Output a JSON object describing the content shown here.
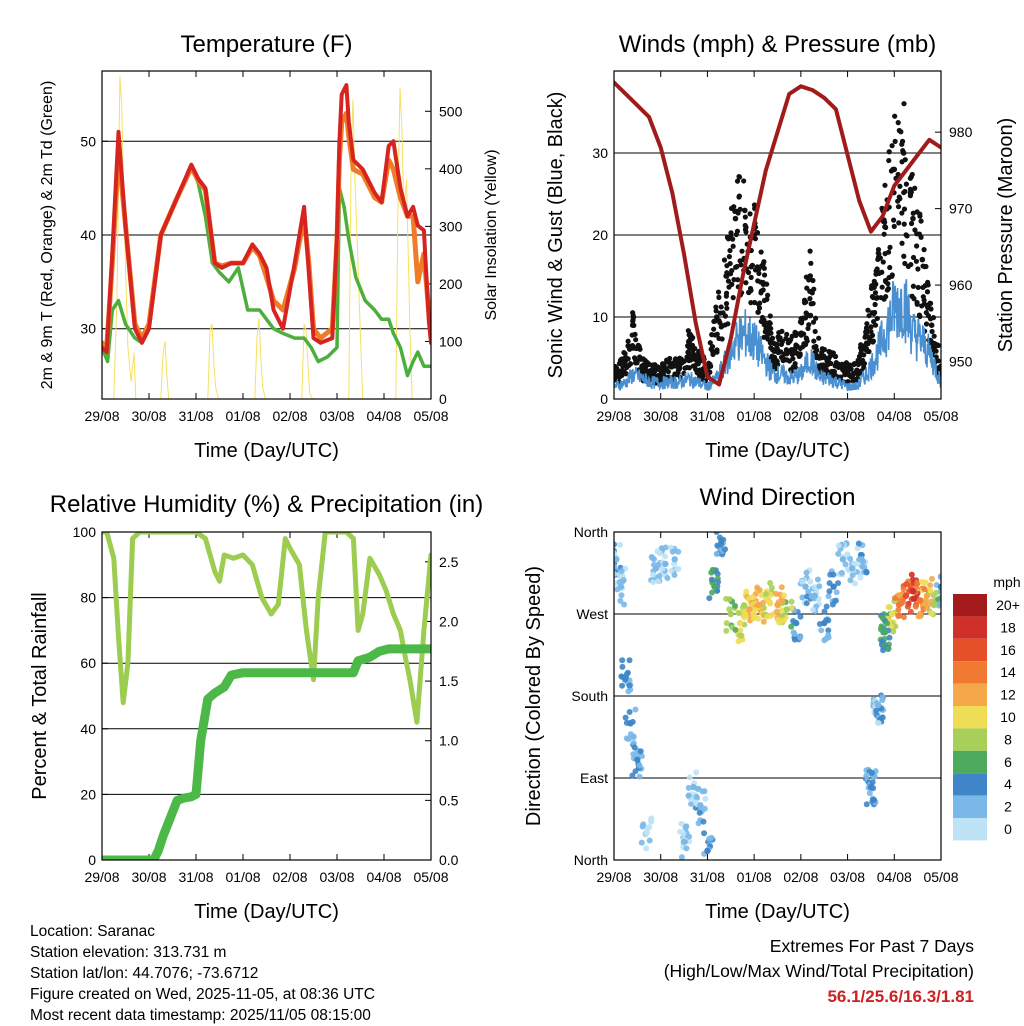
{
  "info": {
    "location": "Location: Saranac",
    "elevation": "Station elevation: 313.731 m",
    "latlon": "Station lat/lon: 44.7076; -73.6712",
    "created": "Figure created on Wed, 2025-11-05, at 08:36 UTC",
    "recent": "Most recent data timestamp: 2025/11/05 08:15:00"
  },
  "extremes": {
    "line1": "Extremes For Past 7 Days",
    "line2": "(High/Low/Max Wind/Total Precipitation)",
    "values": "56.1/25.6/16.3/1.81"
  },
  "colors": {
    "t2m": "#d62520",
    "t9m": "#f07c28",
    "dew": "#4caf3c",
    "solar": "#f7e060",
    "gust": "#111111",
    "wind": "#4a90d0",
    "pressure": "#a01c1c",
    "rh": "#9ccc50",
    "precip": "#4cb848"
  },
  "chart_data": [
    {
      "type": "line",
      "title": "Temperature (F)",
      "xlabel": "Time (Day/UTC)",
      "ylabel": "2m & 9m T (Red, Orange) & 2m Td (Green)",
      "ylabel_right": "Solar Insolation (Yellow)",
      "x_ticks": [
        "29/08",
        "30/08",
        "31/08",
        "01/08",
        "02/08",
        "03/08",
        "04/08",
        "05/08"
      ],
      "xlim": [
        0,
        7
      ],
      "ylim": [
        22.5,
        57.5
      ],
      "y_ticks": [
        30,
        40,
        50
      ],
      "y2lim": [
        0,
        570
      ],
      "y2_ticks": [
        0,
        100,
        200,
        300,
        400,
        500
      ],
      "grid": true,
      "series": [
        {
          "name": "2m T",
          "color": "#d62520",
          "x": [
            0,
            0.1,
            0.22,
            0.35,
            0.5,
            0.7,
            0.85,
            1.0,
            1.25,
            1.6,
            1.9,
            2.05,
            2.2,
            2.4,
            2.55,
            2.75,
            3.0,
            3.2,
            3.35,
            3.5,
            3.65,
            3.85,
            4.1,
            4.3,
            4.4,
            4.5,
            4.65,
            4.9,
            5.0,
            5.05,
            5.1,
            5.2,
            5.25,
            5.35,
            5.55,
            5.8,
            5.95,
            6.1,
            6.2,
            6.35,
            6.5,
            6.62,
            6.72,
            6.85,
            6.95,
            7.0
          ],
          "y": [
            28,
            27.5,
            38,
            51,
            41,
            30,
            28.5,
            30,
            40,
            44,
            47.5,
            46,
            45,
            37,
            36.5,
            37,
            37,
            39,
            38,
            36.5,
            32,
            30,
            37,
            43,
            36,
            29,
            28.5,
            29,
            40,
            50,
            55,
            56,
            52,
            48,
            47,
            44.5,
            43.5,
            49.5,
            50,
            45,
            42,
            43,
            41,
            40.5,
            31,
            28.5
          ]
        },
        {
          "name": "9m T",
          "color": "#f07c28",
          "x": [
            0,
            0.1,
            0.22,
            0.35,
            0.5,
            0.7,
            0.85,
            1.0,
            1.25,
            1.6,
            1.9,
            2.05,
            2.2,
            2.4,
            2.55,
            2.75,
            3.0,
            3.2,
            3.35,
            3.5,
            3.65,
            3.85,
            4.1,
            4.3,
            4.4,
            4.5,
            4.65,
            4.9,
            5.0,
            5.05,
            5.1,
            5.2,
            5.25,
            5.35,
            5.55,
            5.8,
            5.95,
            6.1,
            6.2,
            6.35,
            6.5,
            6.62,
            6.72,
            6.85,
            6.95,
            7.0
          ],
          "y": [
            28.5,
            28,
            37,
            49,
            41,
            30.5,
            29,
            30.5,
            40,
            44,
            47.2,
            45.8,
            44.8,
            37,
            36.7,
            37,
            37,
            38.7,
            37.8,
            35.5,
            33,
            32,
            36.5,
            42,
            37,
            30,
            29,
            30,
            39.5,
            48,
            52,
            53,
            50.5,
            47,
            46.5,
            44,
            43.5,
            48,
            47,
            44,
            42,
            42,
            35,
            38,
            32,
            29
          ]
        },
        {
          "name": "2m Td",
          "color": "#4caf3c",
          "x": [
            0,
            0.12,
            0.22,
            0.35,
            0.5,
            0.7,
            0.85,
            1.0,
            1.25,
            1.6,
            1.9,
            2.05,
            2.2,
            2.35,
            2.5,
            2.7,
            2.9,
            3.1,
            3.35,
            3.5,
            3.65,
            3.85,
            4.1,
            4.3,
            4.45,
            4.6,
            4.8,
            5.0,
            5.05,
            5.15,
            5.25,
            5.4,
            5.6,
            5.8,
            5.95,
            6.1,
            6.2,
            6.35,
            6.5,
            6.62,
            6.72,
            6.85,
            7.0
          ],
          "y": [
            28,
            26.5,
            32,
            33,
            30.5,
            29,
            28.5,
            30,
            40,
            44,
            47.5,
            45.5,
            42,
            37,
            36,
            35,
            36.5,
            32,
            32,
            31,
            30,
            29.5,
            29,
            29,
            28,
            26.5,
            27,
            28,
            45,
            43,
            39.5,
            35.5,
            33,
            32,
            31,
            31,
            29.5,
            28,
            25,
            26.5,
            27.5,
            26,
            26
          ]
        },
        {
          "name": "Solar Insolation",
          "color": "#f7e060",
          "axis": "right",
          "x": [
            0.25,
            0.32,
            0.38,
            0.42,
            0.46,
            0.5,
            0.55,
            0.62,
            0.68,
            0.72,
            0.85,
            1.25,
            1.3,
            1.34,
            1.38,
            1.42,
            2.25,
            2.3,
            2.34,
            2.38,
            2.42,
            2.48,
            3.25,
            3.3,
            3.34,
            3.38,
            3.42,
            3.48,
            4.25,
            4.3,
            4.34,
            4.38,
            4.42,
            4.48,
            5.25,
            5.3,
            5.34,
            5.38,
            5.42,
            5.48,
            5.55,
            6.25,
            6.3,
            6.34,
            6.38,
            6.42,
            6.48,
            6.55,
            6.6
          ],
          "y": [
            0,
            180,
            560,
            510,
            370,
            230,
            90,
            30,
            80,
            0,
            0,
            0,
            80,
            100,
            40,
            0,
            0,
            120,
            130,
            60,
            20,
            0,
            0,
            110,
            140,
            70,
            20,
            0,
            0,
            130,
            120,
            60,
            10,
            0,
            0,
            420,
            520,
            380,
            300,
            150,
            0,
            0,
            360,
            540,
            470,
            330,
            380,
            120,
            0
          ]
        }
      ]
    },
    {
      "type": "scatter",
      "title": "Winds (mph) & Pressure (mb)",
      "xlabel": "Time (Day/UTC)",
      "ylabel": "Sonic Wind & Gust (Blue, Black)",
      "ylabel_right": "Station Pressure (Maroon)",
      "x_ticks": [
        "29/08",
        "30/08",
        "31/08",
        "01/08",
        "02/08",
        "03/08",
        "04/08",
        "05/08"
      ],
      "xlim": [
        0,
        7
      ],
      "ylim": [
        0,
        40
      ],
      "y_ticks": [
        0,
        10,
        20,
        30
      ],
      "y2lim": [
        945.1,
        988
      ],
      "y2_ticks": [
        950,
        960,
        970,
        980
      ],
      "grid": true,
      "series": [
        {
          "name": "Gust",
          "color": "#111111",
          "marker": "dot",
          "x": [
            0.0,
            0.25,
            0.4,
            0.6,
            0.8,
            1.0,
            1.2,
            1.4,
            1.6,
            1.8,
            2.0,
            2.2,
            2.4,
            2.6,
            2.8,
            3.0,
            3.2,
            3.4,
            3.6,
            3.8,
            4.0,
            4.2,
            4.4,
            4.6,
            4.8,
            5.0,
            5.2,
            5.4,
            5.6,
            5.8,
            6.0,
            6.2,
            6.4,
            6.6,
            6.8,
            7.0
          ],
          "y": [
            3,
            5,
            9,
            4,
            3.5,
            3.5,
            4,
            4,
            7,
            5,
            3.5,
            10,
            15,
            22,
            23,
            20,
            14,
            6,
            7,
            6,
            8,
            15,
            5,
            5,
            4,
            3.5,
            3.5,
            8,
            14,
            21,
            28,
            30,
            22,
            17,
            9,
            4
          ]
        },
        {
          "name": "Wind",
          "color": "#4a90d0",
          "type": "line",
          "x": [
            0.0,
            0.25,
            0.4,
            0.6,
            0.8,
            1.0,
            1.2,
            1.4,
            1.6,
            1.8,
            2.0,
            2.2,
            2.4,
            2.6,
            2.8,
            3.0,
            3.2,
            3.4,
            3.6,
            3.8,
            4.0,
            4.2,
            4.4,
            4.6,
            4.8,
            5.0,
            5.2,
            5.4,
            5.6,
            5.8,
            6.0,
            6.2,
            6.4,
            6.6,
            6.8,
            7.0
          ],
          "y": [
            1.5,
            2,
            3,
            2.5,
            2,
            2,
            2,
            2,
            2.5,
            2,
            1.5,
            2.5,
            4.5,
            7,
            8,
            7,
            5,
            3,
            3,
            2.5,
            3,
            5,
            2.5,
            2.5,
            2,
            1.5,
            1.5,
            3,
            5,
            8,
            11,
            12,
            8,
            7,
            5,
            2
          ]
        },
        {
          "name": "Station Pressure",
          "color": "#a01c1c",
          "type": "line",
          "axis": "right",
          "x": [
            0.0,
            0.25,
            0.5,
            0.75,
            1.0,
            1.25,
            1.5,
            1.75,
            2.0,
            2.25,
            2.5,
            2.75,
            3.0,
            3.25,
            3.5,
            3.75,
            4.0,
            4.25,
            4.5,
            4.75,
            5.0,
            5.25,
            5.5,
            5.75,
            6.0,
            6.25,
            6.5,
            6.75,
            7.0
          ],
          "y": [
            986.5,
            985,
            983.5,
            982,
            978,
            972,
            964,
            955,
            948,
            947,
            953,
            961,
            968,
            975,
            980,
            985,
            986,
            985.5,
            984.5,
            983,
            977,
            971,
            967,
            969,
            973,
            975,
            977,
            979,
            978
          ]
        }
      ]
    },
    {
      "type": "line",
      "title": "Relative Humidity (%) & Precipitation (in)",
      "xlabel": "Time (Day/UTC)",
      "ylabel": "Percent & Total Rainfall",
      "x_ticks": [
        "29/08",
        "30/08",
        "31/08",
        "01/08",
        "02/08",
        "03/08",
        "04/08",
        "05/08"
      ],
      "xlim": [
        0,
        7
      ],
      "ylim": [
        0,
        100
      ],
      "y_ticks": [
        0,
        20,
        40,
        60,
        80,
        100
      ],
      "y2lim": [
        0,
        2.75
      ],
      "y2_ticks": [
        0.0,
        0.5,
        1.0,
        1.5,
        2.0,
        2.5
      ],
      "grid": true,
      "series": [
        {
          "name": "Relative Humidity",
          "color": "#9ccc50",
          "x": [
            0.0,
            0.1,
            0.25,
            0.35,
            0.45,
            0.55,
            0.65,
            0.8,
            1.2,
            1.6,
            2.0,
            2.2,
            2.4,
            2.5,
            2.6,
            2.8,
            3.0,
            3.2,
            3.4,
            3.6,
            3.75,
            3.9,
            4.0,
            4.2,
            4.35,
            4.5,
            4.6,
            4.75,
            5.0,
            5.2,
            5.35,
            5.45,
            5.55,
            5.7,
            5.9,
            6.05,
            6.2,
            6.35,
            6.45,
            6.55,
            6.7,
            6.85,
            7.0
          ],
          "y": [
            100,
            100,
            92,
            68,
            48,
            60,
            98,
            100,
            100,
            100,
            100,
            98,
            88,
            85,
            93,
            92,
            93,
            90,
            80,
            75,
            78,
            98,
            95,
            90,
            70,
            55,
            80,
            100,
            100,
            100,
            98,
            70,
            75,
            92,
            87,
            82,
            75,
            70,
            62,
            55,
            42,
            70,
            93
          ]
        },
        {
          "name": "Total Precipitation",
          "color": "#4cb848",
          "axis": "right",
          "x": [
            0.0,
            1.1,
            1.2,
            1.3,
            1.45,
            1.6,
            1.75,
            1.9,
            2.0,
            2.1,
            2.25,
            2.4,
            2.6,
            2.75,
            3.0,
            4.0,
            5.0,
            5.35,
            5.45,
            5.7,
            5.9,
            6.1,
            6.5,
            7.0
          ],
          "y": [
            0.0,
            0.0,
            0.08,
            0.2,
            0.35,
            0.5,
            0.52,
            0.53,
            0.55,
            1.0,
            1.35,
            1.4,
            1.45,
            1.55,
            1.57,
            1.57,
            1.57,
            1.57,
            1.67,
            1.7,
            1.75,
            1.77,
            1.77,
            1.77
          ]
        }
      ]
    },
    {
      "type": "scatter",
      "title": "Wind Direction",
      "xlabel": "Time (Day/UTC)",
      "ylabel": "Direction (Colored By Speed)",
      "x_ticks": [
        "29/08",
        "30/08",
        "31/08",
        "01/08",
        "02/08",
        "03/08",
        "04/08",
        "05/08"
      ],
      "xlim": [
        0,
        7
      ],
      "ylim": [
        0,
        360
      ],
      "y_ticks": [
        "North",
        "East",
        "South",
        "West",
        "North"
      ],
      "y_tick_values": [
        0,
        90,
        180,
        270,
        360
      ],
      "grid": true,
      "colorbar": {
        "title": "mph",
        "levels": [
          "20+",
          "18",
          "16",
          "14",
          "12",
          "10",
          "8",
          "6",
          "4",
          "2",
          "0"
        ],
        "colors": [
          "#a31a1a",
          "#d0302a",
          "#e65028",
          "#f07a32",
          "#f5a84a",
          "#eedd55",
          "#a8d058",
          "#4caa5c",
          "#3e86c8",
          "#7ab8e8",
          "#bee2f6"
        ]
      },
      "series": [
        {
          "name": "Direction",
          "marker": "dot",
          "x": [
            0.05,
            0.15,
            0.25,
            0.35,
            0.5,
            0.7,
            0.9,
            1.1,
            1.3,
            1.5,
            1.7,
            1.85,
            2.0,
            2.15,
            2.3,
            2.5,
            2.7,
            2.9,
            3.1,
            3.3,
            3.5,
            3.7,
            3.9,
            4.1,
            4.3,
            4.5,
            4.7,
            4.9,
            5.1,
            5.3,
            5.5,
            5.65,
            5.8,
            5.95,
            6.1,
            6.25,
            6.4,
            6.55,
            6.7,
            6.85,
            7.0
          ],
          "y": [
            330,
            300,
            200,
            150,
            110,
            30,
            320,
            325,
            330,
            20,
            80,
            60,
            10,
            300,
            350,
            270,
            260,
            275,
            280,
            285,
            280,
            275,
            260,
            300,
            290,
            260,
            300,
            330,
            320,
            330,
            80,
            170,
            250,
            270,
            280,
            290,
            295,
            285,
            290,
            280,
            300
          ],
          "speeds": [
            3,
            2,
            4,
            4,
            4,
            1,
            2,
            2,
            2,
            2,
            2,
            3,
            4,
            6,
            4,
            8,
            10,
            12,
            12,
            10,
            12,
            9,
            4,
            3,
            2,
            4,
            4,
            2,
            2,
            3,
            4,
            3,
            6,
            10,
            14,
            16,
            18,
            14,
            12,
            8,
            4
          ]
        }
      ]
    }
  ]
}
